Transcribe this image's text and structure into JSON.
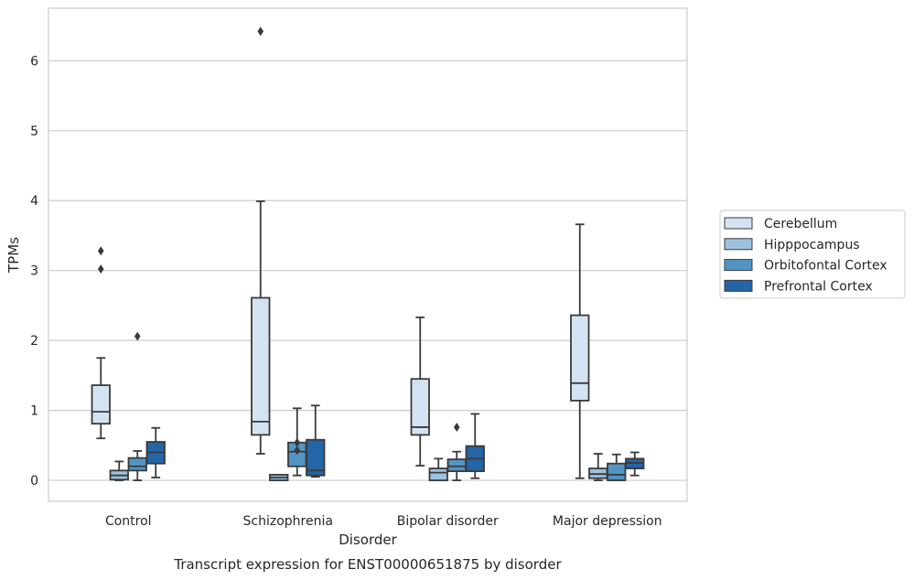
{
  "caption": "Transcript expression for ENST00000651875 by disorder",
  "chart_data": {
    "type": "box",
    "xlabel": "Disorder",
    "ylabel": "TPMs",
    "ylim": [
      -0.3,
      6.75
    ],
    "yticks": [
      0,
      1,
      2,
      3,
      4,
      5,
      6
    ],
    "grid": "horizontal",
    "legend_position": "right",
    "categories": [
      "Control",
      "Schizophrenia",
      "Bipolar disorder",
      "Major depression"
    ],
    "series": [
      {
        "name": "Cerebellum",
        "color": "#d4e3f1",
        "boxes": [
          {
            "whislo": 0.6,
            "q1": 0.81,
            "med": 0.98,
            "q3": 1.36,
            "whishi": 1.75,
            "fliers": [
              3.02,
              3.28
            ]
          },
          {
            "whislo": 0.38,
            "q1": 0.65,
            "med": 0.84,
            "q3": 2.61,
            "whishi": 3.99,
            "fliers": [
              6.42
            ]
          },
          {
            "whislo": 0.21,
            "q1": 0.65,
            "med": 0.76,
            "q3": 1.45,
            "whishi": 2.33,
            "fliers": []
          },
          {
            "whislo": 0.03,
            "q1": 1.14,
            "med": 1.39,
            "q3": 2.36,
            "whishi": 3.66,
            "fliers": []
          }
        ]
      },
      {
        "name": "Hipppocampus",
        "color": "#9dc2dd",
        "boxes": [
          {
            "whislo": 0.0,
            "q1": 0.01,
            "med": 0.07,
            "q3": 0.14,
            "whishi": 0.27,
            "fliers": []
          },
          {
            "whislo": 0.0,
            "q1": 0.0,
            "med": 0.04,
            "q3": 0.08,
            "whishi": 0.08,
            "fliers": []
          },
          {
            "whislo": 0.0,
            "q1": 0.0,
            "med": 0.11,
            "q3": 0.17,
            "whishi": 0.31,
            "fliers": []
          },
          {
            "whislo": 0.0,
            "q1": 0.03,
            "med": 0.09,
            "q3": 0.17,
            "whishi": 0.38,
            "fliers": []
          }
        ]
      },
      {
        "name": "Orbitofontal Cortex",
        "color": "#5295c5",
        "boxes": [
          {
            "whislo": 0.0,
            "q1": 0.14,
            "med": 0.2,
            "q3": 0.32,
            "whishi": 0.42,
            "fliers": [
              2.06
            ]
          },
          {
            "whislo": 0.07,
            "q1": 0.2,
            "med": 0.41,
            "q3": 0.54,
            "whishi": 1.03,
            "fliers": [
              0.43,
              0.54
            ]
          },
          {
            "whislo": 0.0,
            "q1": 0.13,
            "med": 0.2,
            "q3": 0.3,
            "whishi": 0.41,
            "fliers": [
              0.76
            ]
          },
          {
            "whislo": 0.0,
            "q1": 0.0,
            "med": 0.08,
            "q3": 0.24,
            "whishi": 0.37,
            "fliers": []
          }
        ]
      },
      {
        "name": "Prefrontal Cortex",
        "color": "#2365a5",
        "boxes": [
          {
            "whislo": 0.04,
            "q1": 0.24,
            "med": 0.4,
            "q3": 0.55,
            "whishi": 0.75,
            "fliers": []
          },
          {
            "whislo": 0.05,
            "q1": 0.07,
            "med": 0.14,
            "q3": 0.58,
            "whishi": 1.07,
            "fliers": []
          },
          {
            "whislo": 0.03,
            "q1": 0.13,
            "med": 0.31,
            "q3": 0.49,
            "whishi": 0.95,
            "fliers": []
          },
          {
            "whislo": 0.07,
            "q1": 0.17,
            "med": 0.25,
            "q3": 0.31,
            "whishi": 0.4,
            "fliers": []
          }
        ]
      }
    ]
  }
}
